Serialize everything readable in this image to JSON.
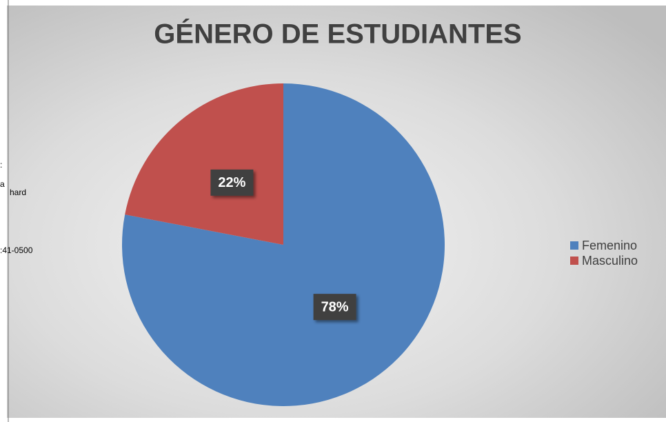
{
  "chart_data": {
    "type": "pie",
    "title": "GÉNERO DE ESTUDIANTES",
    "categories": [
      "Femenino",
      "Masculino"
    ],
    "values": [
      78,
      22
    ],
    "value_labels": [
      "78%",
      "22%"
    ],
    "colors": [
      "#4f81bd",
      "#c0504d"
    ],
    "legend": "right"
  },
  "side_text": [
    ":",
    "a",
    "hard",
    ":41-0500"
  ]
}
